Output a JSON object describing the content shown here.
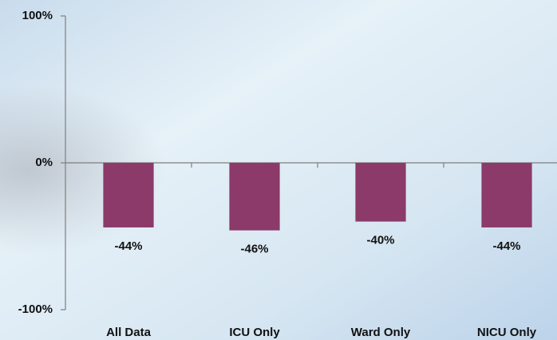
{
  "chart_data": {
    "type": "bar",
    "categories": [
      "All Data",
      "ICU Only",
      "Ward Only",
      "NICU Only"
    ],
    "values": [
      -44,
      -46,
      -40,
      -44
    ],
    "value_labels": [
      "-44%",
      "-46%",
      "-40%",
      "-44%"
    ],
    "color": "#8b3a6a",
    "ylim": [
      -100,
      100
    ],
    "yticks": [
      {
        "value": -100,
        "label": "-100%"
      },
      {
        "value": 0,
        "label": "0%"
      },
      {
        "value": 100,
        "label": "100%"
      }
    ]
  }
}
